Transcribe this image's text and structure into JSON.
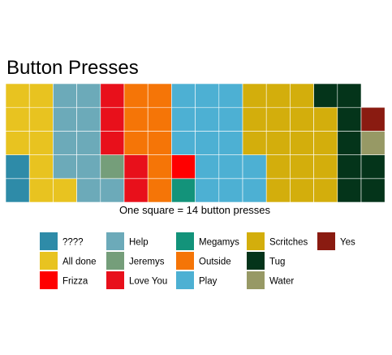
{
  "chart_data": {
    "type": "waffle",
    "title": "Button Presses",
    "caption": "One square = 14 button presses",
    "rows": 5,
    "fill_order": "column-major, bottom-to-top",
    "legend_placement": "bottom",
    "series": [
      {
        "name": "????",
        "squares": 2,
        "color": "#2E8BA8"
      },
      {
        "name": "All done",
        "squares": 9,
        "color": "#E8C320"
      },
      {
        "name": "Help",
        "squares": 10,
        "color": "#6CAAB9"
      },
      {
        "name": "Jeremys",
        "squares": 1,
        "color": "#759E7A"
      },
      {
        "name": "Love You",
        "squares": 5,
        "color": "#E8101B"
      },
      {
        "name": "Outside",
        "squares": 8,
        "color": "#F57507"
      },
      {
        "name": "Megamys",
        "squares": 1,
        "color": "#13937A"
      },
      {
        "name": "Frizza",
        "squares": 1,
        "color": "#FF0000"
      },
      {
        "name": "Play",
        "squares": 15,
        "color": "#4DB0D3"
      },
      {
        "name": "Scritches",
        "squares": 17,
        "color": "#D3AE0C"
      },
      {
        "name": "Tug",
        "squares": 8,
        "color": "#04341A"
      },
      {
        "name": "Water",
        "squares": 1,
        "color": "#979965"
      },
      {
        "name": "Yes",
        "squares": 1,
        "color": "#8A1B11"
      }
    ],
    "legend": [
      {
        "name": "????",
        "color": "#2E8BA8"
      },
      {
        "name": "All done",
        "color": "#E8C320"
      },
      {
        "name": "Frizza",
        "color": "#FF0000"
      },
      {
        "name": "Help",
        "color": "#6CAAB9"
      },
      {
        "name": "Jeremys",
        "color": "#759E7A"
      },
      {
        "name": "Love You",
        "color": "#E8101B"
      },
      {
        "name": "Megamys",
        "color": "#13937A"
      },
      {
        "name": "Outside",
        "color": "#F57507"
      },
      {
        "name": "Play",
        "color": "#4DB0D3"
      },
      {
        "name": "Scritches",
        "color": "#D3AE0C"
      },
      {
        "name": "Tug",
        "color": "#04341A"
      },
      {
        "name": "Water",
        "color": "#979965"
      },
      {
        "name": "Yes",
        "color": "#8A1B11"
      }
    ]
  }
}
